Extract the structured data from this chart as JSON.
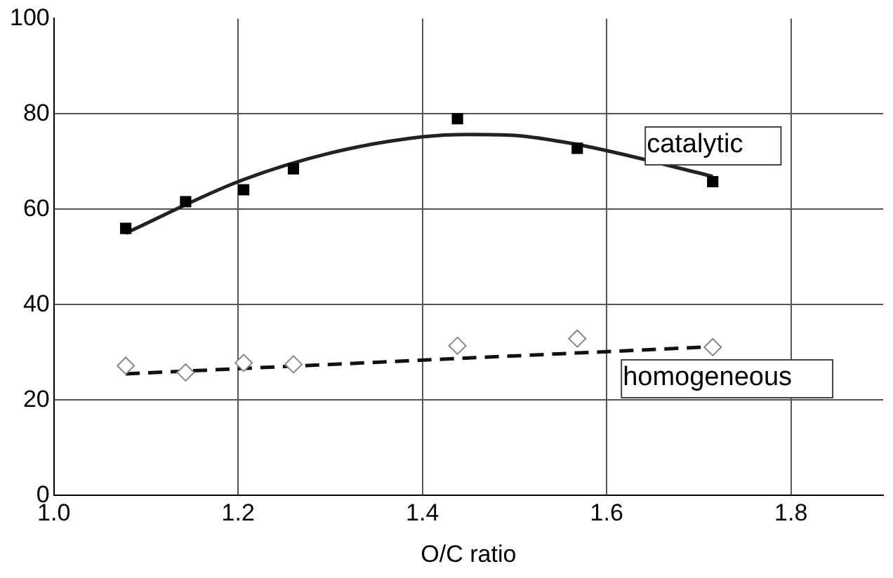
{
  "chart_data": {
    "type": "scatter",
    "xlabel": "O/C ratio",
    "xlim": [
      1.0,
      1.9
    ],
    "xticks": [
      {
        "value": 1.0,
        "label": "1.0"
      },
      {
        "value": 1.2,
        "label": "1.2"
      },
      {
        "value": 1.4,
        "label": "1.4"
      },
      {
        "value": 1.6,
        "label": "1.6"
      },
      {
        "value": 1.8,
        "label": "1.8"
      }
    ],
    "ylim": [
      0,
      100
    ],
    "yticks": [
      0,
      20,
      40,
      60,
      80,
      100
    ],
    "grid": true,
    "legend": false,
    "series": [
      {
        "name": "catalytic",
        "type": "scatter",
        "marker": "square",
        "color": "#000000",
        "x": [
          1.078,
          1.143,
          1.206,
          1.26,
          1.438,
          1.568,
          1.715
        ],
        "values": [
          56,
          61.6,
          64.1,
          68.5,
          79,
          72.8,
          65.8
        ]
      },
      {
        "name": "homogeneous",
        "type": "scatter",
        "marker": "diamond",
        "color": "#888888",
        "x": [
          1.078,
          1.143,
          1.206,
          1.26,
          1.438,
          1.568,
          1.715
        ],
        "values": [
          27.2,
          25.8,
          27.8,
          27.5,
          31.4,
          32.9,
          31.1
        ]
      },
      {
        "type": "line",
        "line_style": "solid",
        "color": "#222222",
        "x": [
          1.078,
          1.2,
          1.3,
          1.4,
          1.45,
          1.5,
          1.55,
          1.6,
          1.715
        ],
        "values": [
          55,
          65.8,
          71.8,
          75.2,
          75.7,
          75.5,
          74.2,
          72.3,
          66.9
        ]
      },
      {
        "type": "line",
        "line_style": "dashed",
        "color": "#111111",
        "x": [
          1.078,
          1.715
        ],
        "values": [
          25.5,
          31.2
        ]
      }
    ]
  }
}
